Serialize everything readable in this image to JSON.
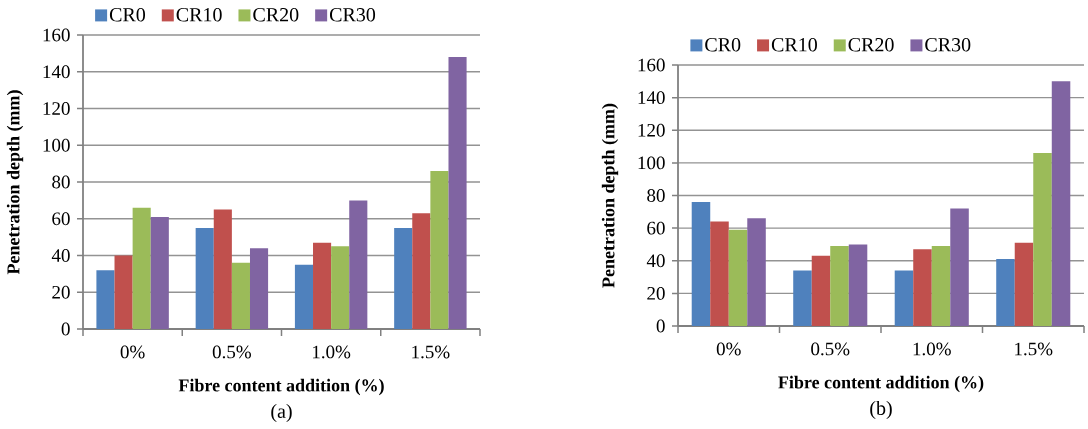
{
  "chart_data": [
    {
      "type": "bar",
      "categories": [
        "0%",
        "0.5%",
        "1.0%",
        "1.5%"
      ],
      "series": [
        {
          "name": "CR0",
          "color": "#4f81bd",
          "values": [
            32,
            55,
            35,
            55
          ]
        },
        {
          "name": "CR10",
          "color": "#c0504d",
          "values": [
            40,
            65,
            47,
            63
          ]
        },
        {
          "name": "CR20",
          "color": "#9bbb59",
          "values": [
            66,
            36,
            45,
            86
          ]
        },
        {
          "name": "CR30",
          "color": "#8064a2",
          "values": [
            61,
            44,
            70,
            148
          ]
        }
      ],
      "xlabel": "Fibre content addition (%)",
      "ylabel": "Penetration depth (mm)",
      "ylim": [
        0,
        160
      ],
      "yticks": [
        0,
        20,
        40,
        60,
        80,
        100,
        120,
        140,
        160
      ],
      "grid": "y",
      "legend": "top",
      "annotations": [
        "(a)"
      ]
    },
    {
      "type": "bar",
      "categories": [
        "0%",
        "0.5%",
        "1.0%",
        "1.5%"
      ],
      "series": [
        {
          "name": "CR0",
          "color": "#4f81bd",
          "values": [
            76,
            34,
            34,
            41
          ]
        },
        {
          "name": "CR10",
          "color": "#c0504d",
          "values": [
            64,
            43,
            47,
            51
          ]
        },
        {
          "name": "CR20",
          "color": "#9bbb59",
          "values": [
            59,
            49,
            49,
            106
          ]
        },
        {
          "name": "CR30",
          "color": "#8064a2",
          "values": [
            66,
            50,
            72,
            150
          ]
        }
      ],
      "xlabel": "Fibre content addition (%)",
      "ylabel": "Penetration depth (mm)",
      "ylim": [
        0,
        160
      ],
      "yticks": [
        0,
        20,
        40,
        60,
        80,
        100,
        120,
        140,
        160
      ],
      "grid": "y",
      "legend": "top",
      "annotations": [
        "(b)"
      ]
    }
  ]
}
